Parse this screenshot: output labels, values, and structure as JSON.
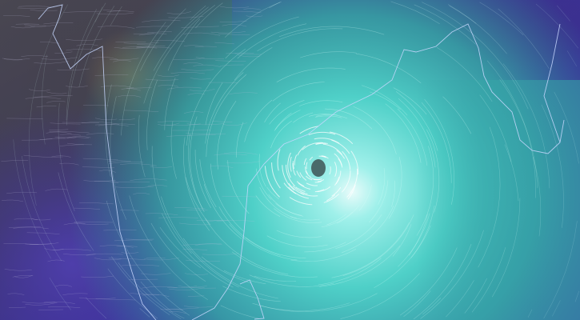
{
  "map": {
    "layer": "wind-streamlines",
    "feature": "cyclone",
    "colors": {
      "calm": "#4a4650",
      "calm_warm": "#6b5c48",
      "moderate": "#3a2f96",
      "moderate_light": "#5a4fc0",
      "strong": "#3fb8b0",
      "very_strong": "#6fe0d8",
      "core": "#e8fbfa",
      "eye": "#4a6a6a",
      "coastline": "#c8d8ff"
    },
    "icons": [
      "cyclone-eye-icon"
    ]
  }
}
